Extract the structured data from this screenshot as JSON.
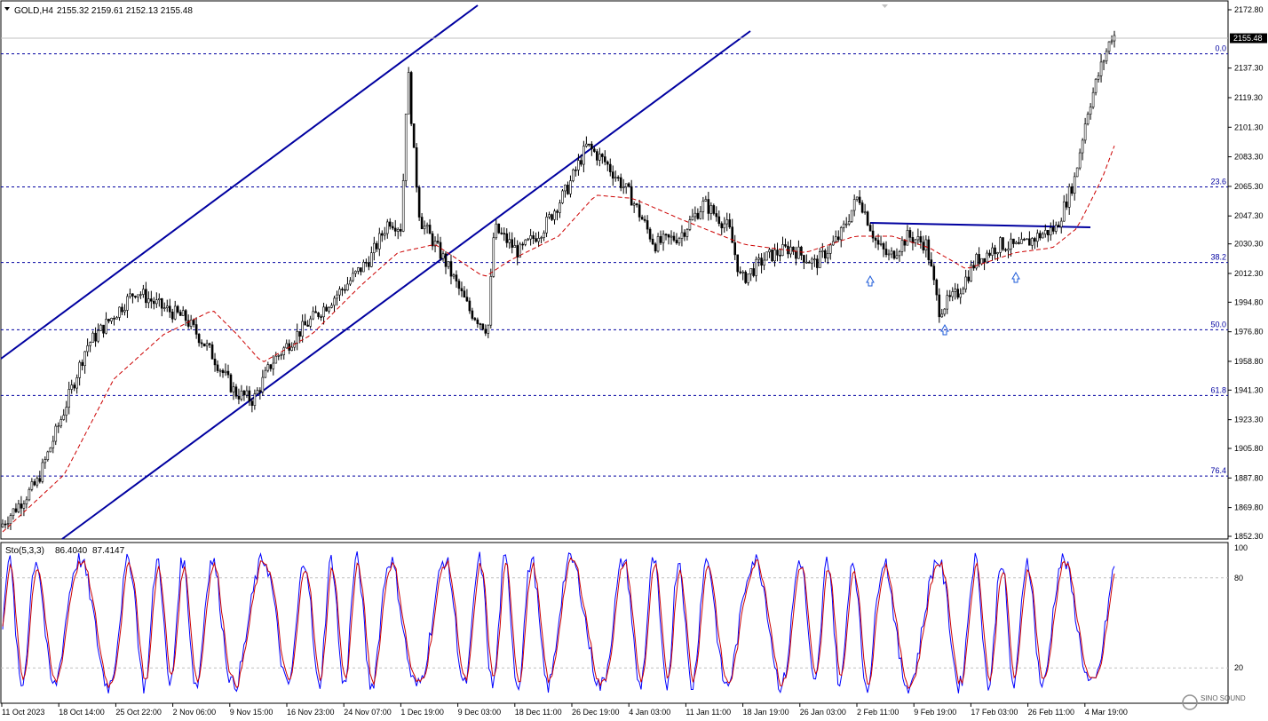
{
  "header": {
    "symbol": "GOLD,H4",
    "ohlc": "2155.32 2159.61 2152.13 2155.48"
  },
  "stoch_label": {
    "name": "Sto(5,3,3)",
    "main": "86.4040",
    "signal": "87.4147"
  },
  "watermark": "SINO SOUND",
  "chart_data": {
    "type": "candlestick",
    "price_ylim": [
      1852.3,
      2180.0
    ],
    "price_ticks": [
      2172.8,
      2155.48,
      2137.3,
      2119.3,
      2101.3,
      2083.3,
      2065.3,
      2047.3,
      2030.3,
      2012.3,
      1994.8,
      1976.8,
      1958.8,
      1941.3,
      1923.3,
      1905.8,
      1887.8,
      1869.8,
      1852.3
    ],
    "current_price": 2155.48,
    "date_labels": [
      "11 Oct 2023",
      "18 Oct 14:00",
      "25 Oct 22:00",
      "2 Nov 06:00",
      "9 Nov 15:00",
      "16 Nov 23:00",
      "24 Nov 07:00",
      "1 Dec 19:00",
      "9 Dec 03:00",
      "18 Dec 11:00",
      "26 Dec 19:00",
      "4 Jan 03:00",
      "11 Jan 11:00",
      "18 Jan 19:00",
      "26 Jan 03:00",
      "2 Feb 11:00",
      "9 Feb 19:00",
      "17 Feb 03:00",
      "26 Feb 11:00",
      "4 Mar 19:00"
    ],
    "fib_levels": [
      {
        "label": "0.0",
        "price": 2146.0
      },
      {
        "label": "23.6",
        "price": 2065.0
      },
      {
        "label": "38.2",
        "price": 2019.0
      },
      {
        "label": "50.0",
        "price": 1978.0
      },
      {
        "label": "61.8",
        "price": 1938.0
      },
      {
        "label": "76.4",
        "price": 1889.0
      }
    ],
    "price_path": [
      [
        0,
        1858
      ],
      [
        0.03,
        1885
      ],
      [
        0.05,
        1925
      ],
      [
        0.07,
        1968
      ],
      [
        0.09,
        1985
      ],
      [
        0.11,
        2002
      ],
      [
        0.13,
        1992
      ],
      [
        0.15,
        1985
      ],
      [
        0.17,
        1965
      ],
      [
        0.19,
        1940
      ],
      [
        0.205,
        1935
      ],
      [
        0.22,
        1958
      ],
      [
        0.24,
        1975
      ],
      [
        0.26,
        1990
      ],
      [
        0.28,
        2005
      ],
      [
        0.3,
        2022
      ],
      [
        0.315,
        2045
      ],
      [
        0.325,
        2040
      ],
      [
        0.33,
        2140
      ],
      [
        0.335,
        2085
      ],
      [
        0.34,
        2045
      ],
      [
        0.36,
        2020
      ],
      [
        0.38,
        1990
      ],
      [
        0.395,
        1978
      ],
      [
        0.4,
        2040
      ],
      [
        0.42,
        2025
      ],
      [
        0.44,
        2040
      ],
      [
        0.46,
        2065
      ],
      [
        0.475,
        2090
      ],
      [
        0.49,
        2080
      ],
      [
        0.51,
        2060
      ],
      [
        0.53,
        2030
      ],
      [
        0.55,
        2035
      ],
      [
        0.57,
        2055
      ],
      [
        0.59,
        2040
      ],
      [
        0.6,
        2008
      ],
      [
        0.62,
        2022
      ],
      [
        0.64,
        2028
      ],
      [
        0.66,
        2018
      ],
      [
        0.68,
        2035
      ],
      [
        0.695,
        2060
      ],
      [
        0.71,
        2030
      ],
      [
        0.72,
        2022
      ],
      [
        0.735,
        2035
      ],
      [
        0.75,
        2030
      ],
      [
        0.76,
        1990
      ],
      [
        0.775,
        2000
      ],
      [
        0.79,
        2020
      ],
      [
        0.81,
        2030
      ],
      [
        0.825,
        2028
      ],
      [
        0.84,
        2035
      ],
      [
        0.855,
        2040
      ],
      [
        0.87,
        2070
      ],
      [
        0.88,
        2110
      ],
      [
        0.89,
        2135
      ],
      [
        0.9,
        2157
      ]
    ],
    "ma_path": [
      [
        0.0,
        1855
      ],
      [
        0.05,
        1890
      ],
      [
        0.09,
        1948
      ],
      [
        0.13,
        1975
      ],
      [
        0.17,
        1990
      ],
      [
        0.19,
        1975
      ],
      [
        0.21,
        1958
      ],
      [
        0.25,
        1975
      ],
      [
        0.29,
        2005
      ],
      [
        0.32,
        2025
      ],
      [
        0.35,
        2030
      ],
      [
        0.37,
        2020
      ],
      [
        0.39,
        2010
      ],
      [
        0.41,
        2020
      ],
      [
        0.45,
        2035
      ],
      [
        0.48,
        2060
      ],
      [
        0.51,
        2058
      ],
      [
        0.55,
        2045
      ],
      [
        0.6,
        2030
      ],
      [
        0.65,
        2025
      ],
      [
        0.69,
        2035
      ],
      [
        0.72,
        2035
      ],
      [
        0.75,
        2028
      ],
      [
        0.78,
        2015
      ],
      [
        0.82,
        2025
      ],
      [
        0.85,
        2028
      ],
      [
        0.87,
        2040
      ],
      [
        0.89,
        2070
      ],
      [
        0.9,
        2090
      ]
    ],
    "stoch_ylim": [
      0,
      100
    ],
    "stoch_levels": [
      20,
      80
    ],
    "stoch_ticks": [
      100,
      80,
      20
    ]
  }
}
